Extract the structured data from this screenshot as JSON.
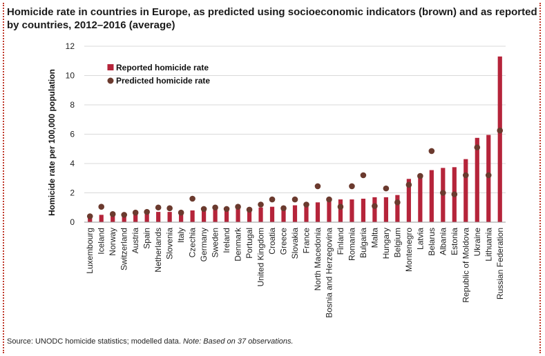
{
  "header": {
    "title": "Homicide rate in countries in Europe, as predicted using socioeconomic indicators (brown) and as reported by countries, 2012–2016 (average)"
  },
  "footer": {
    "source_label": "Source: UNODC homicide statistics; modelled data.",
    "note": "Note: Based on 37 observations."
  },
  "chart_data": {
    "type": "bar",
    "ylabel": "Homicide rate per 100,000 population",
    "ylim": [
      0,
      12
    ],
    "yticks": [
      0,
      2,
      4,
      6,
      8,
      10,
      12
    ],
    "legend_position": "top-left",
    "categories": [
      "Luxembourg",
      "Iceland",
      "Norway",
      "Switzerland",
      "Austria",
      "Spain",
      "Netherlands",
      "Slovenia",
      "Italy",
      "Czechia",
      "Germany",
      "Sweden",
      "Ireland",
      "Denmark",
      "Portugal",
      "United Kingdom",
      "Croatia",
      "Greece",
      "Slovakia",
      "France",
      "North Macedonia",
      "Bosnia and Herzegovina",
      "Finland",
      "Romania",
      "Bulgaria",
      "Malta",
      "Hungary",
      "Belgium",
      "Montenegro",
      "Latvia",
      "Belarus",
      "Albania",
      "Estonia",
      "Republic of Moldova",
      "Ukraine",
      "Lithuania",
      "Russian Federation"
    ],
    "series": [
      {
        "name": "Reported homicide rate",
        "kind": "bar",
        "color": "#b5243a",
        "values": [
          0.4,
          0.5,
          0.5,
          0.5,
          0.6,
          0.65,
          0.7,
          0.7,
          0.75,
          0.8,
          0.85,
          0.9,
          0.9,
          1.0,
          1.0,
          1.0,
          1.05,
          1.1,
          1.15,
          1.2,
          1.35,
          1.4,
          1.55,
          1.55,
          1.6,
          1.7,
          1.7,
          1.85,
          2.95,
          3.2,
          3.55,
          3.7,
          3.75,
          4.3,
          5.75,
          5.95,
          11.3
        ]
      },
      {
        "name": "Predicted homicide rate",
        "kind": "dot",
        "color": "#6b3a2e",
        "values": [
          0.4,
          1.05,
          0.55,
          0.5,
          0.65,
          0.7,
          1.0,
          0.95,
          0.65,
          1.6,
          0.9,
          1.0,
          0.9,
          1.05,
          0.85,
          1.2,
          1.55,
          0.95,
          1.55,
          1.2,
          2.45,
          1.55,
          1.05,
          2.45,
          3.2,
          1.1,
          2.3,
          1.35,
          2.55,
          3.15,
          4.85,
          2.0,
          1.9,
          3.2,
          5.1,
          3.2,
          6.25
        ]
      }
    ]
  }
}
